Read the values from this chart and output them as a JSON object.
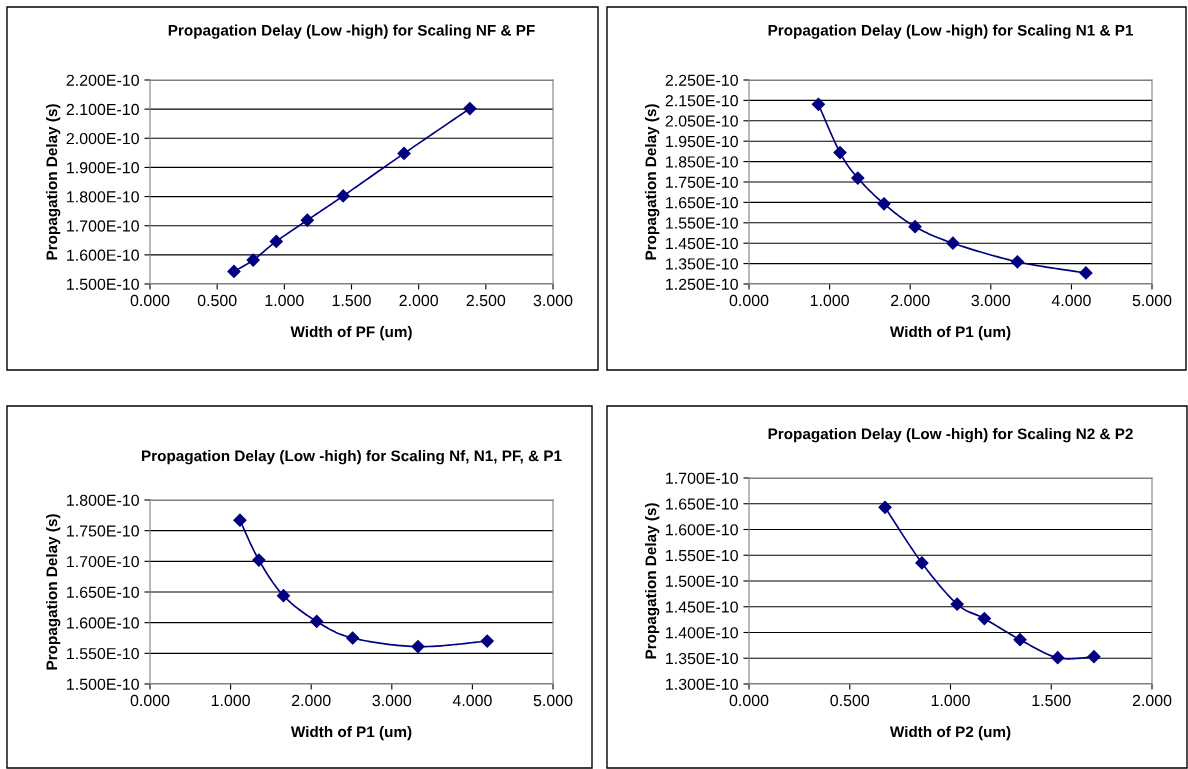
{
  "chart_data": [
    {
      "type": "line",
      "title": "Propagation Delay (Low -high) for Scaling NF & PF",
      "xlabel": "Width of PF (um)",
      "ylabel": "Propagation Delay (s)",
      "marker": "diamond",
      "grid": "y",
      "legend": false,
      "series": [
        {
          "color": "#000080",
          "x": [
            0.625,
            0.768,
            0.94,
            1.171,
            1.438,
            1.891,
            2.381
          ],
          "values": [
            1.543e-10,
            1.582e-10,
            1.646e-10,
            1.719e-10,
            1.802e-10,
            1.948e-10,
            2.102e-10
          ]
        }
      ],
      "xlim": [
        0,
        3
      ],
      "xticks": [
        {
          "value": 0,
          "label": "0.000"
        },
        {
          "value": 0.5,
          "label": "0.500"
        },
        {
          "value": 1,
          "label": "1.000"
        },
        {
          "value": 1.5,
          "label": "1.500"
        },
        {
          "value": 2,
          "label": "2.000"
        },
        {
          "value": 2.5,
          "label": "2.500"
        },
        {
          "value": 3,
          "label": "3.000"
        }
      ],
      "ylim": [
        1.5e-10,
        2.2e-10
      ],
      "yticks": [
        {
          "value": 1.5e-10,
          "label": "1.500E-10"
        },
        {
          "value": 1.6e-10,
          "label": "1.600E-10"
        },
        {
          "value": 1.7e-10,
          "label": "1.700E-10"
        },
        {
          "value": 1.8e-10,
          "label": "1.800E-10"
        },
        {
          "value": 1.9e-10,
          "label": "1.900E-10"
        },
        {
          "value": 2e-10,
          "label": "2.000E-10"
        },
        {
          "value": 2.1e-10,
          "label": "2.100E-10"
        },
        {
          "value": 2.2e-10,
          "label": "2.200E-10"
        }
      ]
    },
    {
      "type": "line",
      "title": "Propagation Delay (Low -high) for Scaling N1 & P1",
      "xlabel": "Width of P1 (um)",
      "ylabel": "Propagation Delay (s)",
      "marker": "diamond",
      "grid": "y",
      "legend": false,
      "series": [
        {
          "color": "#000080",
          "x": [
            0.861,
            1.129,
            1.35,
            1.675,
            2.06,
            2.53,
            3.33,
            4.18
          ],
          "values": [
            2.131e-10,
            1.894e-10,
            1.769e-10,
            1.643e-10,
            1.531e-10,
            1.45e-10,
            1.359e-10,
            1.304e-10
          ]
        }
      ],
      "xlim": [
        0,
        5
      ],
      "xticks": [
        {
          "value": 0,
          "label": "0.000"
        },
        {
          "value": 1,
          "label": "1.000"
        },
        {
          "value": 2,
          "label": "2.000"
        },
        {
          "value": 3,
          "label": "3.000"
        },
        {
          "value": 4,
          "label": "4.000"
        },
        {
          "value": 5,
          "label": "5.000"
        }
      ],
      "ylim": [
        1.25e-10,
        2.25e-10
      ],
      "yticks": [
        {
          "value": 1.25e-10,
          "label": "1.250E-10"
        },
        {
          "value": 1.35e-10,
          "label": "1.350E-10"
        },
        {
          "value": 1.45e-10,
          "label": "1.450E-10"
        },
        {
          "value": 1.55e-10,
          "label": "1.550E-10"
        },
        {
          "value": 1.65e-10,
          "label": "1.650E-10"
        },
        {
          "value": 1.75e-10,
          "label": "1.750E-10"
        },
        {
          "value": 1.85e-10,
          "label": "1.850E-10"
        },
        {
          "value": 1.95e-10,
          "label": "1.950E-10"
        },
        {
          "value": 2.05e-10,
          "label": "2.050E-10"
        },
        {
          "value": 2.15e-10,
          "label": "2.150E-10"
        },
        {
          "value": 2.25e-10,
          "label": "2.250E-10"
        }
      ]
    },
    {
      "type": "line",
      "title": "Propagation Delay (Low -high) for Scaling Nf, N1, PF, & P1",
      "xlabel": "Width of P1 (um)",
      "ylabel": "Propagation Delay (s)",
      "marker": "diamond",
      "grid": "y",
      "legend": false,
      "series": [
        {
          "color": "#000080",
          "x": [
            1.116,
            1.351,
            1.656,
            2.068,
            2.514,
            3.325,
            4.184
          ],
          "values": [
            1.767e-10,
            1.702e-10,
            1.644e-10,
            1.602e-10,
            1.575e-10,
            1.561e-10,
            1.57e-10
          ]
        }
      ],
      "xlim": [
        0,
        5
      ],
      "xticks": [
        {
          "value": 0,
          "label": "0.000"
        },
        {
          "value": 1,
          "label": "1.000"
        },
        {
          "value": 2,
          "label": "2.000"
        },
        {
          "value": 3,
          "label": "3.000"
        },
        {
          "value": 4,
          "label": "4.000"
        },
        {
          "value": 5,
          "label": "5.000"
        }
      ],
      "ylim": [
        1.5e-10,
        1.8e-10
      ],
      "yticks": [
        {
          "value": 1.5e-10,
          "label": "1.500E-10"
        },
        {
          "value": 1.55e-10,
          "label": "1.550E-10"
        },
        {
          "value": 1.6e-10,
          "label": "1.600E-10"
        },
        {
          "value": 1.65e-10,
          "label": "1.650E-10"
        },
        {
          "value": 1.7e-10,
          "label": "1.700E-10"
        },
        {
          "value": 1.75e-10,
          "label": "1.750E-10"
        },
        {
          "value": 1.8e-10,
          "label": "1.800E-10"
        }
      ]
    },
    {
      "type": "line",
      "title": "Propagation Delay (Low -high) for Scaling N2 & P2",
      "xlabel": "Width of P2 (um)",
      "ylabel": "Propagation Delay (s)",
      "marker": "diamond",
      "grid": "y",
      "legend": false,
      "series": [
        {
          "color": "#000080",
          "x": [
            0.675,
            0.858,
            1.033,
            1.168,
            1.345,
            1.532,
            1.712
          ],
          "values": [
            1.643e-10,
            1.535e-10,
            1.455e-10,
            1.427e-10,
            1.386e-10,
            1.351e-10,
            1.353e-10
          ]
        }
      ],
      "xlim": [
        0,
        2
      ],
      "xticks": [
        {
          "value": 0,
          "label": "0.000"
        },
        {
          "value": 0.5,
          "label": "0.500"
        },
        {
          "value": 1,
          "label": "1.000"
        },
        {
          "value": 1.5,
          "label": "1.500"
        },
        {
          "value": 2,
          "label": "2.000"
        }
      ],
      "ylim": [
        1.3e-10,
        1.7e-10
      ],
      "yticks": [
        {
          "value": 1.3e-10,
          "label": "1.300E-10"
        },
        {
          "value": 1.35e-10,
          "label": "1.350E-10"
        },
        {
          "value": 1.4e-10,
          "label": "1.400E-10"
        },
        {
          "value": 1.45e-10,
          "label": "1.450E-10"
        },
        {
          "value": 1.5e-10,
          "label": "1.500E-10"
        },
        {
          "value": 1.55e-10,
          "label": "1.550E-10"
        },
        {
          "value": 1.6e-10,
          "label": "1.600E-10"
        },
        {
          "value": 1.65e-10,
          "label": "1.650E-10"
        },
        {
          "value": 1.7e-10,
          "label": "1.700E-10"
        }
      ]
    }
  ]
}
